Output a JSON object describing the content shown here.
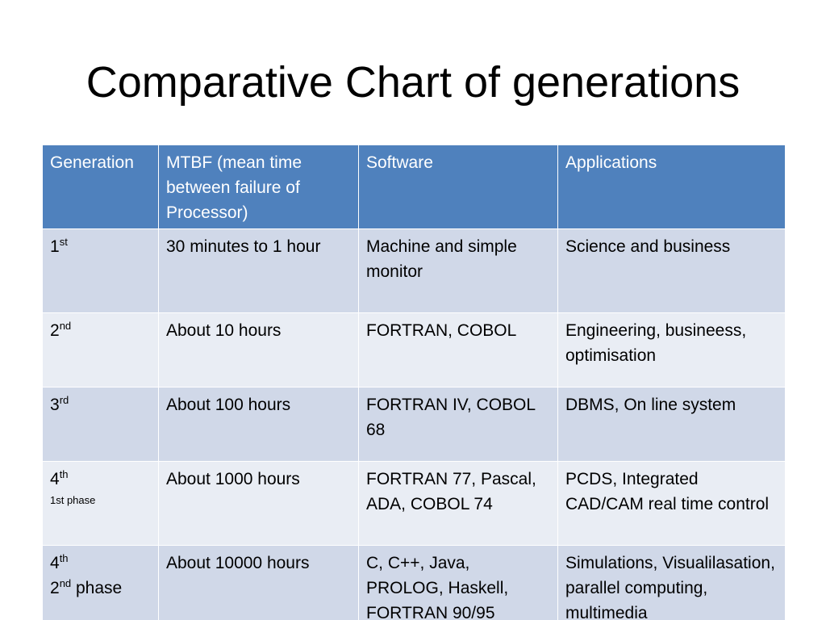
{
  "slide": {
    "title": "Comparative Chart of generations"
  },
  "table": {
    "headers": [
      "Generation",
      "MTBF  (mean time between failure of Processor)",
      "Software",
      "Applications"
    ],
    "rows": [
      {
        "generation": {
          "num": "1",
          "suffix": "st",
          "phase": ""
        },
        "mtbf": "30 minutes to 1 hour",
        "software": "Machine  and simple monitor",
        "applications": "Science and business"
      },
      {
        "generation": {
          "num": "2",
          "suffix": "nd",
          "phase": ""
        },
        "mtbf": "About 10 hours",
        "software": "FORTRAN, COBOL",
        "applications": "Engineering, busineess, optimisation"
      },
      {
        "generation": {
          "num": "3",
          "suffix": "rd",
          "phase": ""
        },
        "mtbf": "About 100 hours",
        "software": "FORTRAN IV, COBOL 68",
        "applications": "DBMS, On line system"
      },
      {
        "generation": {
          "num": "4",
          "suffix": "th",
          "phase": "1st phase"
        },
        "mtbf": "About 1000 hours",
        "software": "FORTRAN 77, Pascal, ADA, COBOL 74",
        "applications": "PCDS, Integrated CAD/CAM real time control"
      },
      {
        "generation": {
          "num": "4",
          "suffix": "th",
          "phase_num": "2",
          "phase_suffix": "nd",
          "phase_label": " phase"
        },
        "mtbf": "About 10000 hours",
        "software": "C, C++, Java, PROLOG, Haskell, FORTRAN 90/95",
        "applications": "Simulations, Visualilasation, parallel computing, multimedia"
      }
    ]
  },
  "colors": {
    "header_bg": "#4f81bd",
    "row_odd_bg": "#d0d8e8",
    "row_even_bg": "#e9edf4"
  }
}
